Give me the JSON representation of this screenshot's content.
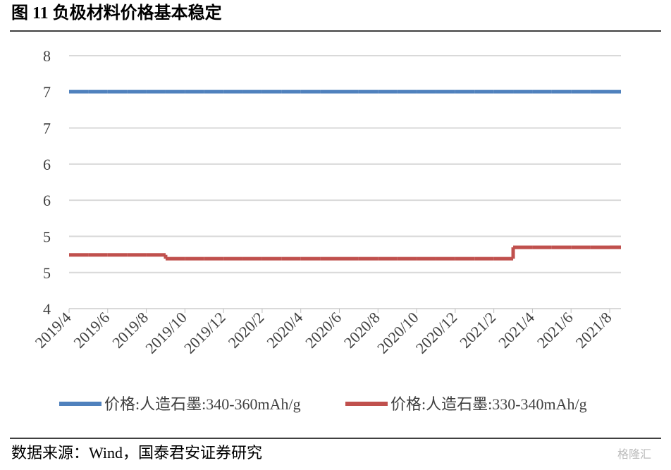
{
  "chart_data": {
    "type": "line",
    "title": "图 11 负极材料价格基本稳定",
    "source": "数据来源：Wind，国泰君安证券研究",
    "watermark": "格隆汇",
    "categories": [
      "2019/4",
      null,
      "2019/6",
      null,
      "2019/8",
      null,
      "2019/10",
      null,
      "2019/12",
      null,
      "2020/2",
      null,
      "2020/4",
      null,
      "2020/6",
      null,
      "2020/8",
      null,
      "2020/10",
      null,
      "2020/12",
      null,
      "2021/2",
      null,
      "2021/4",
      null,
      "2021/6",
      null,
      "2021/8"
    ],
    "series": [
      {
        "name": "价格:人造石墨:340-360mAh/g",
        "color": "#4f81bd",
        "values": [
          7.43,
          7.43,
          7.43,
          7.43,
          7.43,
          7.43,
          7.43,
          7.43,
          7.43,
          7.43,
          7.43,
          7.43,
          7.43,
          7.43,
          7.43,
          7.43,
          7.43,
          7.43,
          7.43,
          7.43,
          7.43,
          7.43,
          7.43,
          7.43,
          7.43,
          7.43,
          7.43,
          7.43,
          7.43
        ]
      },
      {
        "name": "价格:人造石墨:330-340mAh/g",
        "color": "#c0504d",
        "values": [
          4.85,
          4.85,
          4.85,
          4.85,
          4.85,
          4.79,
          4.79,
          4.79,
          4.79,
          4.79,
          4.79,
          4.79,
          4.79,
          4.79,
          4.79,
          4.79,
          4.79,
          4.79,
          4.79,
          4.79,
          4.79,
          4.79,
          4.79,
          4.97,
          4.97,
          4.97,
          4.97,
          4.97,
          4.97
        ]
      }
    ],
    "ylim": [
      4,
      8
    ],
    "yticks": [
      4,
      {
        "value": 4.571,
        "label": "5"
      },
      {
        "value": 5.143,
        "label": "5"
      },
      {
        "value": 5.714,
        "label": "6"
      },
      {
        "value": 6.286,
        "label": "6"
      },
      {
        "value": 6.857,
        "label": "7"
      },
      {
        "value": 7.429,
        "label": "7"
      },
      8
    ],
    "grid": true
  }
}
